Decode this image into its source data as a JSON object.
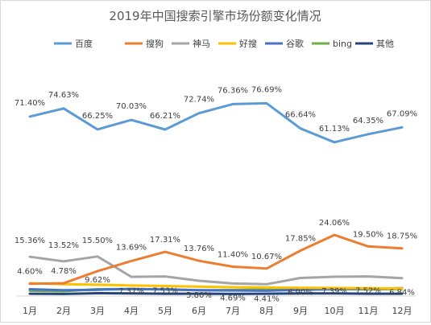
{
  "chart_data": {
    "type": "line",
    "title": "2019年中国搜索引擎市场份额变化情况",
    "categories": [
      "1月",
      "2月",
      "3月",
      "4月",
      "5月",
      "6月",
      "7月",
      "8月",
      "9月",
      "10月",
      "11月",
      "12月"
    ],
    "ylim": [
      0,
      90
    ],
    "grid": false,
    "legend": "top",
    "series": [
      {
        "name": "百度",
        "color": "#5b9bd5",
        "values": [
          71.4,
          74.63,
          66.25,
          70.03,
          66.21,
          72.74,
          76.36,
          76.69,
          66.64,
          61.13,
          64.35,
          67.09
        ],
        "labels": [
          "71.40%",
          "74.63%",
          "66.25%",
          "70.03%",
          "66.21%",
          "72.74%",
          "76.36%",
          "76.69%",
          "66.64%",
          "61.13%",
          "64.35%",
          "67.09%"
        ]
      },
      {
        "name": "搜狗",
        "color": "#ed7d31",
        "values": [
          4.6,
          4.78,
          9.62,
          13.69,
          17.31,
          13.76,
          11.4,
          10.67,
          17.85,
          24.06,
          19.5,
          18.75
        ],
        "labels": [
          "4.60%",
          "4.78%",
          "9.62%",
          "13.69%",
          "17.31%",
          "13.76%",
          "11.40%",
          "10.67%",
          "17.85%",
          "24.06%",
          "19.50%",
          "18.75%"
        ]
      },
      {
        "name": "神马",
        "color": "#a5a5a5",
        "values": [
          15.36,
          13.52,
          15.5,
          7.37,
          7.53,
          5.8,
          4.69,
          4.41,
          6.9,
          7.39,
          7.52,
          6.84
        ],
        "labels": [
          "15.36%",
          "13.52%",
          "15.50%",
          "7.37%",
          "7.53%",
          "5.80%",
          "4.69%",
          "4.41%",
          "6.90%",
          "7.39%",
          "7.52%",
          "6.84%"
        ]
      },
      {
        "name": "好搜",
        "color": "#ffc000",
        "values": [
          4.8,
          4.4,
          4.2,
          3.9,
          3.7,
          3.4,
          3.2,
          3.1,
          3.0,
          2.9,
          2.8,
          2.7
        ]
      },
      {
        "name": "谷歌",
        "color": "#4472c4",
        "values": [
          2.4,
          2.0,
          2.2,
          2.5,
          2.3,
          2.0,
          1.9,
          1.8,
          2.2,
          2.4,
          2.6,
          2.8
        ]
      },
      {
        "name": "bing",
        "color": "#70ad47",
        "values": [
          1.8,
          1.6,
          2.4,
          2.5,
          2.3,
          2.0,
          2.1,
          2.3,
          2.4,
          2.5,
          2.3,
          2.5
        ]
      },
      {
        "name": "其他",
        "color": "#264478",
        "values": [
          0.6,
          0.5,
          0.8,
          0.7,
          0.6,
          0.6,
          0.5,
          0.6,
          0.7,
          0.7,
          0.6,
          0.6
        ]
      }
    ]
  }
}
